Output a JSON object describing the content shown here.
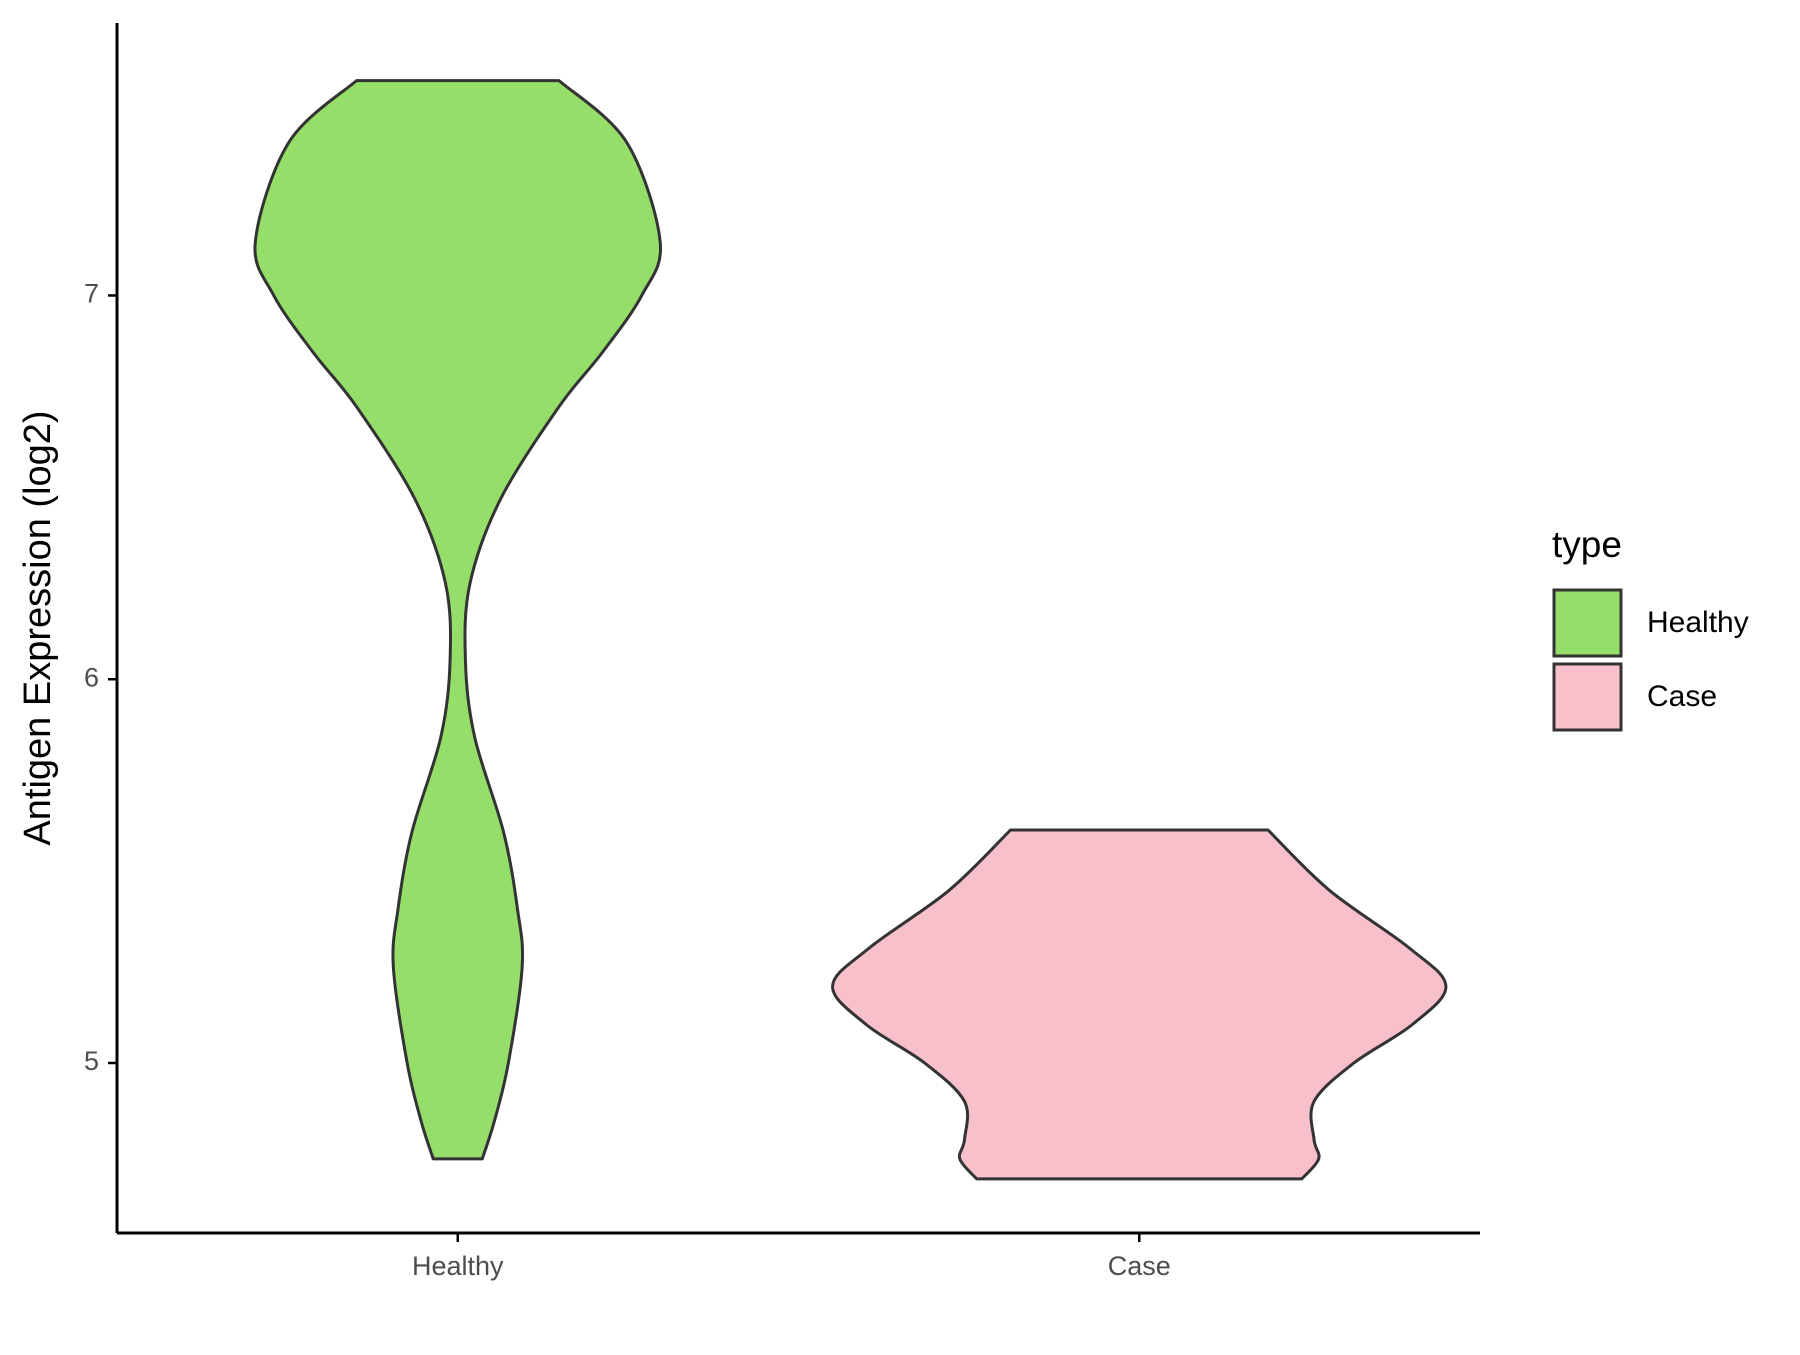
{
  "chart_data": {
    "type": "violin",
    "y_label": "Antigen Expression (log2)",
    "categories": [
      "Healthy",
      "Case"
    ],
    "series": [
      {
        "name": "Healthy",
        "color": "#95de6a",
        "y": [
          4.75,
          4.85,
          5.0,
          5.25,
          5.4,
          5.6,
          5.85,
          6.05,
          6.25,
          6.47,
          6.71,
          6.85,
          7.0,
          7.14,
          7.4,
          7.56
        ],
        "density": [
          0.08,
          0.12,
          0.165,
          0.21,
          0.195,
          0.15,
          0.055,
          0.025,
          0.04,
          0.14,
          0.33,
          0.47,
          0.6,
          0.66,
          0.55,
          0.33
        ]
      },
      {
        "name": "Case",
        "color": "#f8c0cb",
        "y": [
          4.698,
          4.75,
          4.8,
          4.9,
          5.0,
          5.1,
          5.2,
          5.3,
          5.45,
          5.607
        ],
        "density": [
          0.53,
          0.585,
          0.57,
          0.57,
          0.7,
          0.89,
          1.0,
          0.88,
          0.62,
          0.42
        ]
      }
    ],
    "ylim": [
      4.557,
      7.71
    ],
    "yticks": [
      5,
      6,
      7
    ],
    "legend_title": "type",
    "legend_position": "right"
  }
}
